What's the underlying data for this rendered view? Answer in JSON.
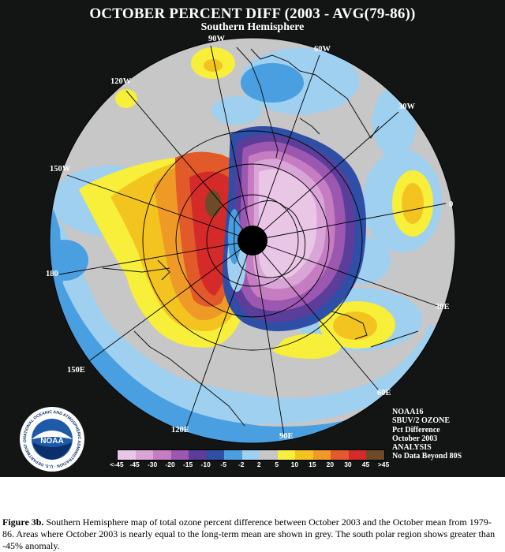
{
  "title": "OCTOBER PERCENT DIFF (2003 - AVG(79-86))",
  "subtitle": "Southern Hemisphere",
  "longitude_labels": {
    "lon_90W": "90W",
    "lon_60W": "60W",
    "lon_30W": "30W",
    "lon_0": "0",
    "lon_30E": "30E",
    "lon_60E": "60E",
    "lon_90E": "90E",
    "lon_120E": "120E",
    "lon_150E": "150E",
    "lon_180": "180",
    "lon_150W": "150W",
    "lon_120W": "120W"
  },
  "info_lines": [
    "NOAA16",
    "SBUV/2 OZONE",
    "Pct Difference",
    "October 2003",
    "ANALYSIS",
    "No Data Beyond 80S"
  ],
  "colorbar": {
    "labels": [
      "<-45",
      "-45",
      "-30",
      "-20",
      "-15",
      "-10",
      "-5",
      "-2",
      "2",
      "5",
      "10",
      "15",
      "20",
      "30",
      "45",
      ">45"
    ],
    "colors": [
      "#eac6e6",
      "#d9a5d7",
      "#c57cc1",
      "#9c57b0",
      "#5b3d9a",
      "#2f4fa6",
      "#4a9fe0",
      "#9fd0f0",
      "#c7c7c7",
      "#f7ef3a",
      "#f3c41f",
      "#ef9a27",
      "#e2592a",
      "#d42a2a",
      "#6d4a28"
    ],
    "no_data_color": "#000000"
  },
  "logo": {
    "text": "NOAA",
    "ring_text": "NATIONAL OCEANIC AND ATMOSPHERIC ADMINISTRATION · U.S. DEPARTMENT OF COMMERCE"
  },
  "caption": {
    "label": "Figure 3b.",
    "text": " Southern Hemisphere map of total ozone percent difference between October 2003 and the October mean from 1979-86.  Areas where October 2003 is nearly equal to the long-term mean are shown in grey.  The south polar region shows greater than  -45% anomaly."
  }
}
